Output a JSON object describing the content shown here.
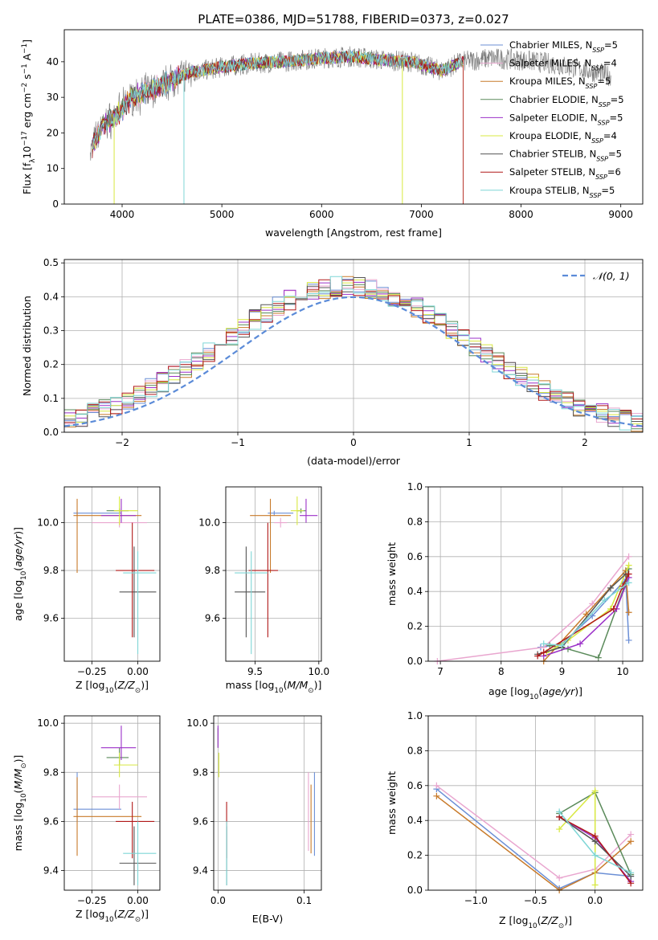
{
  "figure_title": "PLATE=0386, MJD=51788, FIBERID=0373, z=0.027",
  "colors": {
    "Chabrier MILES": "#6b8fd6",
    "Salpeter MILES": "#e9a6cf",
    "Kroupa MILES": "#c87a2a",
    "Chabrier ELODIE": "#5a8a5a",
    "Salpeter ELODIE": "#9b30c8",
    "Kroupa ELODIE": "#d8e840",
    "Chabrier STELIB": "#555555",
    "Salpeter STELIB": "#b01818",
    "Kroupa STELIB": "#7fd6d6",
    "normal_curve": "#5b8bd8",
    "grid": "#b0b0b0"
  },
  "chart_data": [
    {
      "id": "spectrum",
      "type": "line",
      "title": "PLATE=0386, MJD=51788, FIBERID=0373, z=0.027",
      "xlabel": "wavelength [Angstrom, rest frame]",
      "ylabel": "Flux [f_λ10^-17 erg cm^-2 s^-1 A^-1]",
      "xlim": [
        3420,
        9220
      ],
      "ylim": [
        0,
        49
      ],
      "xticks": [
        4000,
        5000,
        6000,
        7000,
        8000,
        9000
      ],
      "yticks": [
        0,
        10,
        20,
        30,
        40
      ],
      "grid": false,
      "legend_position": "top-right",
      "legend": [
        {
          "name": "Chabrier MILES",
          "nssp": "5"
        },
        {
          "name": "Salpeter MILES",
          "nssp": "4"
        },
        {
          "name": "Kroupa MILES",
          "nssp": "5"
        },
        {
          "name": "Chabrier ELODIE",
          "nssp": "5"
        },
        {
          "name": "Salpeter ELODIE",
          "nssp": "5"
        },
        {
          "name": "Kroupa ELODIE",
          "nssp": "4"
        },
        {
          "name": "Chabrier STELIB",
          "nssp": "5"
        },
        {
          "name": "Salpeter STELIB",
          "nssp": "6"
        },
        {
          "name": "Kroupa STELIB",
          "nssp": "5"
        }
      ],
      "data_continuum": [
        [
          3680,
          15
        ],
        [
          3800,
          22
        ],
        [
          3950,
          25
        ],
        [
          4100,
          30
        ],
        [
          4300,
          32
        ],
        [
          4500,
          35
        ],
        [
          4700,
          37
        ],
        [
          5000,
          38.5
        ],
        [
          5300,
          39.5
        ],
        [
          5600,
          40
        ],
        [
          6000,
          41
        ],
        [
          6300,
          41.5
        ],
        [
          6600,
          40.5
        ],
        [
          6900,
          40
        ],
        [
          7200,
          37.5
        ],
        [
          7400,
          40
        ],
        [
          7700,
          41
        ],
        [
          8000,
          40.5
        ],
        [
          8300,
          39.5
        ],
        [
          8600,
          38
        ],
        [
          8900,
          36
        ]
      ],
      "model_range": [
        3700,
        7420
      ]
    },
    {
      "id": "residuals",
      "type": "histogram",
      "xlabel": "(data-model)/error",
      "ylabel": "Normed distribution",
      "xlim": [
        -2.5,
        2.5
      ],
      "ylim": [
        0,
        0.51
      ],
      "xticks": [
        -2,
        -1,
        0,
        1,
        2
      ],
      "yticks": [
        0.0,
        0.1,
        0.2,
        0.3,
        0.4,
        0.5
      ],
      "grid": true,
      "legend_position": "top-right",
      "legend": [
        "𝒩(0, 1)"
      ],
      "bin_width": 0.1
    },
    {
      "id": "age_vs_Z",
      "type": "scatter",
      "xlabel": "Z [log10(Z/Z⊙)]",
      "ylabel": "age  [log10(age/yr)]",
      "xlim": [
        -0.4,
        0.12
      ],
      "ylim": [
        9.42,
        10.15
      ],
      "xticks": [
        -0.25,
        0.0
      ],
      "yticks": [
        9.6,
        9.8,
        10.0
      ],
      "grid": true
    },
    {
      "id": "age_vs_mass",
      "type": "scatter",
      "xlabel": "mass [log10(M/M⊙)]",
      "ylabel": "",
      "xlim": [
        9.27,
        10.02
      ],
      "ylim": [
        9.42,
        10.15
      ],
      "xticks": [
        9.5,
        10.0
      ],
      "yticks": [
        9.6,
        9.8,
        10.0
      ],
      "grid": true
    },
    {
      "id": "weight_vs_age",
      "type": "line",
      "xlabel": "age  [log10(age/yr)]",
      "ylabel": "mass weight",
      "xlim": [
        6.8,
        10.33
      ],
      "ylim": [
        0,
        1.0
      ],
      "xticks": [
        7,
        8,
        9,
        10
      ],
      "yticks": [
        0.0,
        0.2,
        0.4,
        0.6,
        0.8,
        1.0
      ],
      "grid": true
    },
    {
      "id": "mass_vs_Z",
      "type": "scatter",
      "xlabel": "Z [log10(Z/Z⊙)]",
      "ylabel": "mass [log10(M/M⊙)]",
      "xlim": [
        -0.4,
        0.12
      ],
      "ylim": [
        9.32,
        10.03
      ],
      "xticks": [
        -0.25,
        0.0
      ],
      "yticks": [
        9.4,
        9.6,
        9.8,
        10.0
      ],
      "grid": true
    },
    {
      "id": "mass_vs_ebv",
      "type": "scatter",
      "xlabel": "E(B-V)",
      "ylabel": "",
      "xlim": [
        -0.005,
        0.12
      ],
      "ylim": [
        9.32,
        10.03
      ],
      "xticks": [
        0.0,
        0.1
      ],
      "yticks": [
        9.4,
        9.6,
        9.8,
        10.0
      ],
      "grid": true
    },
    {
      "id": "weight_vs_Z",
      "type": "line",
      "xlabel": "Z [log10(Z/Z⊙)]",
      "ylabel": "mass weight",
      "xlim": [
        -1.4,
        0.4
      ],
      "ylim": [
        0,
        1.0
      ],
      "xticks": [
        -1.0,
        -0.5,
        0.0
      ],
      "yticks": [
        0.0,
        0.2,
        0.4,
        0.6,
        0.8,
        1.0
      ],
      "grid": true
    }
  ],
  "fits": [
    {
      "model": "Chabrier MILES",
      "Z": -0.33,
      "Z_lo": -0.35,
      "Z_hi": -0.09,
      "age": 10.04,
      "age_lo": 10.03,
      "age_hi": 10.05,
      "mass": 9.65,
      "mass_lo": 9.6,
      "mass_hi": 9.8,
      "ebv": 0.112,
      "ebv_lo": 9.46,
      "ebv_hi": 9.8,
      "sfh_age": [
        [
          8.65,
          0.08
        ],
        [
          9.0,
          0.1
        ],
        [
          9.5,
          0.26
        ],
        [
          10.05,
          0.47
        ],
        [
          10.1,
          0.12
        ]
      ],
      "sfh_Z": [
        [
          -1.33,
          0.58
        ],
        [
          -0.3,
          0.01
        ],
        [
          0.0,
          0.1
        ],
        [
          0.3,
          0.08
        ]
      ]
    },
    {
      "model": "Salpeter MILES",
      "Z": -0.1,
      "Z_lo": -0.25,
      "Z_hi": 0.05,
      "age": 10.0,
      "age_lo": 9.98,
      "age_hi": 10.02,
      "mass": 9.7,
      "mass_lo": 9.65,
      "mass_hi": 9.75,
      "ebv": 0.105,
      "ebv_lo": 9.48,
      "ebv_hi": 9.8,
      "sfh_age": [
        [
          6.95,
          0.0
        ],
        [
          8.7,
          0.08
        ],
        [
          9.5,
          0.33
        ],
        [
          10.1,
          0.6
        ]
      ],
      "sfh_Z": [
        [
          -1.33,
          0.6
        ],
        [
          -0.3,
          0.07
        ],
        [
          0.0,
          0.12
        ],
        [
          0.3,
          0.32
        ]
      ]
    },
    {
      "model": "Kroupa MILES",
      "Z": -0.33,
      "Z_lo": -0.35,
      "Z_hi": 0.02,
      "age": 10.03,
      "age_lo": 9.79,
      "age_hi": 10.1,
      "mass": 9.62,
      "mass_lo": 9.46,
      "mass_hi": 9.78,
      "ebv": 0.108,
      "ebv_lo": 9.47,
      "ebv_hi": 9.75,
      "sfh_age": [
        [
          8.7,
          0.0
        ],
        [
          9.4,
          0.27
        ],
        [
          10.05,
          0.52
        ],
        [
          10.1,
          0.28
        ]
      ],
      "sfh_Z": [
        [
          -1.33,
          0.54
        ],
        [
          -0.3,
          0.0
        ],
        [
          0.0,
          0.1
        ],
        [
          0.3,
          0.28
        ]
      ]
    },
    {
      "model": "Chabrier ELODIE",
      "Z": -0.1,
      "Z_lo": -0.17,
      "Z_hi": -0.05,
      "age": 10.05,
      "age_lo": 10.04,
      "age_hi": 10.06,
      "mass": 9.86,
      "mass_lo": 9.83,
      "mass_hi": 9.9,
      "ebv": 0.0,
      "ebv_lo": 9.9,
      "ebv_hi": 9.98,
      "sfh_age": [
        [
          8.8,
          0.09
        ],
        [
          9.1,
          0.07
        ],
        [
          9.6,
          0.02
        ],
        [
          10.05,
          0.45
        ],
        [
          10.1,
          0.53
        ]
      ],
      "sfh_Z": [
        [
          -0.3,
          0.44
        ],
        [
          0.0,
          0.56
        ],
        [
          0.3,
          0.09
        ]
      ]
    },
    {
      "model": "Salpeter ELODIE",
      "Z": -0.09,
      "Z_lo": -0.2,
      "Z_hi": -0.01,
      "age": 10.03,
      "age_lo": 10.0,
      "age_hi": 10.1,
      "mass": 9.9,
      "mass_lo": 9.85,
      "mass_hi": 9.99,
      "ebv": 0.0,
      "ebv_lo": 9.9,
      "ebv_hi": 9.99,
      "sfh_age": [
        [
          8.7,
          0.03
        ],
        [
          9.3,
          0.1
        ],
        [
          9.9,
          0.3
        ],
        [
          10.1,
          0.48
        ]
      ],
      "sfh_Z": [
        [
          -0.3,
          0.42
        ],
        [
          0.0,
          0.3
        ],
        [
          0.3,
          0.05
        ]
      ]
    },
    {
      "model": "Kroupa ELODIE",
      "Z": -0.1,
      "Z_lo": -0.13,
      "Z_hi": 0.0,
      "age": 10.05,
      "age_lo": 9.99,
      "age_hi": 10.11,
      "mass": 9.83,
      "mass_lo": 9.78,
      "mass_hi": 9.88,
      "ebv": 0.001,
      "ebv_lo": 9.78,
      "ebv_hi": 9.88,
      "sfh_age": [
        [
          8.75,
          0.05
        ],
        [
          9.1,
          0.12
        ],
        [
          9.8,
          0.3
        ],
        [
          10.1,
          0.55
        ]
      ],
      "sfh_Z": [
        [
          -0.3,
          0.35
        ],
        [
          0.0,
          0.57
        ],
        [
          0.0,
          0.03
        ]
      ]
    },
    {
      "model": "Chabrier STELIB",
      "Z": -0.02,
      "Z_lo": -0.1,
      "Z_hi": 0.1,
      "age": 9.71,
      "age_lo": 9.52,
      "age_hi": 9.9,
      "mass": 9.43,
      "mass_lo": 9.34,
      "mass_hi": 9.58,
      "ebv": 0.01,
      "ebv_lo": 9.34,
      "ebv_hi": 9.58,
      "sfh_age": [
        [
          8.6,
          0.04
        ],
        [
          9.0,
          0.08
        ],
        [
          9.8,
          0.42
        ],
        [
          10.05,
          0.5
        ]
      ],
      "sfh_Z": [
        [
          -0.3,
          0.42
        ],
        [
          0.0,
          0.28
        ],
        [
          0.3,
          0.08
        ]
      ]
    },
    {
      "model": "Salpeter STELIB",
      "Z": -0.03,
      "Z_lo": -0.12,
      "Z_hi": 0.09,
      "age": 9.8,
      "age_lo": 9.52,
      "age_hi": 10.0,
      "mass": 9.6,
      "mass_lo": 9.45,
      "mass_hi": 9.68,
      "ebv": 0.01,
      "ebv_lo": 9.45,
      "ebv_hi": 9.68,
      "sfh_age": [
        [
          8.6,
          0.03
        ],
        [
          8.7,
          0.05
        ],
        [
          9.85,
          0.3
        ],
        [
          10.0,
          0.43
        ],
        [
          10.1,
          0.5
        ]
      ],
      "sfh_Z": [
        [
          -0.3,
          0.42
        ],
        [
          0.0,
          0.31
        ],
        [
          0.3,
          0.04
        ]
      ]
    },
    {
      "model": "Kroupa STELIB",
      "Z": 0.0,
      "Z_lo": -0.08,
      "Z_hi": 0.1,
      "age": 9.79,
      "age_lo": 9.45,
      "age_hi": 9.88,
      "mass": 9.47,
      "mass_lo": 9.34,
      "mass_hi": 9.6,
      "ebv": 0.01,
      "ebv_lo": 9.34,
      "ebv_hi": 9.6,
      "sfh_age": [
        [
          8.7,
          0.1
        ],
        [
          9.0,
          0.09
        ],
        [
          9.7,
          0.35
        ],
        [
          10.1,
          0.45
        ]
      ],
      "sfh_Z": [
        [
          -0.3,
          0.45
        ],
        [
          0.0,
          0.2
        ],
        [
          0.3,
          0.1
        ]
      ]
    }
  ]
}
